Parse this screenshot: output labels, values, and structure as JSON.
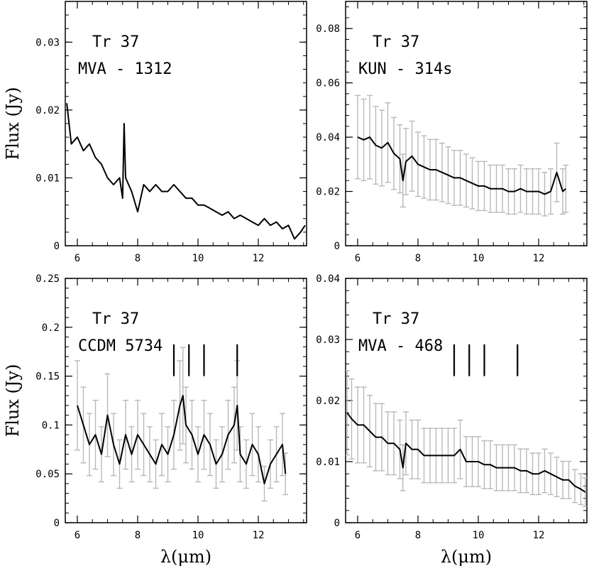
{
  "chart_data": [
    {
      "type": "line",
      "title": "",
      "labels": [
        "Tr 37",
        "MVA - 1312"
      ],
      "xlabel": "",
      "ylabel": "Flux (Jy)",
      "xlim": [
        5.6,
        13.6
      ],
      "ylim": [
        0,
        0.036
      ],
      "xticks": [
        "6",
        "8",
        "10",
        "12"
      ],
      "yticks": [
        "0",
        "0.01",
        "0.02",
        "0.03"
      ],
      "yvals": [
        0,
        0.01,
        0.02,
        0.03
      ],
      "error_bars": false,
      "features": [],
      "series": [
        {
          "name": "MVA - 1312",
          "x": [
            5.65,
            5.8,
            6.0,
            6.2,
            6.4,
            6.6,
            6.8,
            7.0,
            7.2,
            7.4,
            7.5,
            7.55,
            7.6,
            7.8,
            8.0,
            8.2,
            8.4,
            8.6,
            8.8,
            9.0,
            9.2,
            9.4,
            9.6,
            9.8,
            10.0,
            10.2,
            10.4,
            10.6,
            10.8,
            11.0,
            11.2,
            11.4,
            11.6,
            11.8,
            12.0,
            12.2,
            12.4,
            12.6,
            12.8,
            13.0,
            13.2,
            13.4,
            13.55
          ],
          "y": [
            0.021,
            0.015,
            0.016,
            0.014,
            0.015,
            0.013,
            0.012,
            0.01,
            0.009,
            0.01,
            0.007,
            0.018,
            0.01,
            0.008,
            0.005,
            0.009,
            0.008,
            0.009,
            0.008,
            0.008,
            0.009,
            0.008,
            0.007,
            0.007,
            0.006,
            0.006,
            0.0055,
            0.005,
            0.0045,
            0.005,
            0.004,
            0.0045,
            0.004,
            0.0035,
            0.003,
            0.004,
            0.003,
            0.0035,
            0.0025,
            0.003,
            0.001,
            0.002,
            0.003
          ]
        }
      ]
    },
    {
      "type": "line",
      "title": "",
      "labels": [
        "Tr 37",
        "KUN - 314s"
      ],
      "xlabel": "",
      "ylabel": "",
      "xlim": [
        5.6,
        13.6
      ],
      "ylim": [
        0,
        0.09
      ],
      "xticks": [
        "6",
        "8",
        "10",
        "12"
      ],
      "yticks": [
        "0",
        "0.02",
        "0.04",
        "0.06",
        "0.08"
      ],
      "yvals": [
        0,
        0.02,
        0.04,
        0.06,
        0.08
      ],
      "error_bars": true,
      "features": [],
      "series": [
        {
          "name": "KUN - 314s",
          "x": [
            6.0,
            6.2,
            6.4,
            6.6,
            6.8,
            7.0,
            7.2,
            7.4,
            7.5,
            7.6,
            7.8,
            8.0,
            8.2,
            8.4,
            8.6,
            8.8,
            9.0,
            9.2,
            9.4,
            9.6,
            9.8,
            10.0,
            10.2,
            10.4,
            10.6,
            10.8,
            11.0,
            11.2,
            11.4,
            11.6,
            11.8,
            12.0,
            12.2,
            12.4,
            12.6,
            12.8,
            12.9
          ],
          "y": [
            0.04,
            0.039,
            0.04,
            0.037,
            0.036,
            0.038,
            0.034,
            0.032,
            0.024,
            0.031,
            0.033,
            0.03,
            0.029,
            0.028,
            0.028,
            0.027,
            0.026,
            0.025,
            0.025,
            0.024,
            0.023,
            0.022,
            0.022,
            0.021,
            0.021,
            0.021,
            0.02,
            0.02,
            0.021,
            0.02,
            0.02,
            0.02,
            0.019,
            0.02,
            0.027,
            0.02,
            0.021
          ]
        }
      ]
    },
    {
      "type": "line",
      "title": "",
      "labels": [
        "Tr 37",
        "CCDM 5734"
      ],
      "xlabel": "λ(μm)",
      "ylabel": "Flux (Jy)",
      "xlim": [
        5.6,
        13.6
      ],
      "ylim": [
        0,
        0.25
      ],
      "xticks": [
        "6",
        "8",
        "10",
        "12"
      ],
      "yticks": [
        "0",
        "0.05",
        "0.1",
        "0.15",
        "0.2",
        "0.25"
      ],
      "yvals": [
        0,
        0.05,
        0.1,
        0.15,
        0.2,
        0.25
      ],
      "error_bars": true,
      "features": [
        9.2,
        9.7,
        10.2,
        11.3
      ],
      "series": [
        {
          "name": "CCDM 5734",
          "x": [
            6.0,
            6.2,
            6.4,
            6.6,
            6.8,
            7.0,
            7.2,
            7.4,
            7.6,
            7.8,
            8.0,
            8.2,
            8.4,
            8.6,
            8.8,
            9.0,
            9.2,
            9.4,
            9.5,
            9.6,
            9.8,
            10.0,
            10.2,
            10.4,
            10.6,
            10.8,
            11.0,
            11.2,
            11.3,
            11.4,
            11.6,
            11.8,
            12.0,
            12.2,
            12.4,
            12.6,
            12.8,
            12.9
          ],
          "y": [
            0.12,
            0.1,
            0.08,
            0.09,
            0.07,
            0.11,
            0.08,
            0.06,
            0.09,
            0.07,
            0.09,
            0.08,
            0.07,
            0.06,
            0.08,
            0.07,
            0.09,
            0.12,
            0.13,
            0.1,
            0.09,
            0.07,
            0.09,
            0.08,
            0.06,
            0.07,
            0.09,
            0.1,
            0.12,
            0.07,
            0.06,
            0.08,
            0.07,
            0.04,
            0.06,
            0.07,
            0.08,
            0.05
          ]
        }
      ]
    },
    {
      "type": "line",
      "title": "",
      "labels": [
        "Tr 37",
        "MVA - 468"
      ],
      "xlabel": "λ(μm)",
      "ylabel": "",
      "xlim": [
        5.6,
        13.6
      ],
      "ylim": [
        0,
        0.04
      ],
      "xticks": [
        "6",
        "8",
        "10",
        "12"
      ],
      "yticks": [
        "0",
        "0.01",
        "0.02",
        "0.03",
        "0.04"
      ],
      "yvals": [
        0,
        0.01,
        0.02,
        0.03,
        0.04
      ],
      "error_bars": true,
      "features": [
        9.2,
        9.7,
        10.2,
        11.3
      ],
      "series": [
        {
          "name": "MVA - 468",
          "x": [
            5.65,
            5.8,
            6.0,
            6.2,
            6.4,
            6.6,
            6.8,
            7.0,
            7.2,
            7.4,
            7.5,
            7.6,
            7.8,
            8.0,
            8.2,
            8.4,
            8.6,
            8.8,
            9.0,
            9.2,
            9.4,
            9.6,
            9.8,
            10.0,
            10.2,
            10.4,
            10.6,
            10.8,
            11.0,
            11.2,
            11.4,
            11.6,
            11.8,
            12.0,
            12.2,
            12.4,
            12.6,
            12.8,
            13.0,
            13.2,
            13.4,
            13.55
          ],
          "y": [
            0.018,
            0.017,
            0.016,
            0.016,
            0.015,
            0.014,
            0.014,
            0.013,
            0.013,
            0.012,
            0.009,
            0.013,
            0.012,
            0.012,
            0.011,
            0.011,
            0.011,
            0.011,
            0.011,
            0.011,
            0.012,
            0.01,
            0.01,
            0.01,
            0.0095,
            0.0095,
            0.009,
            0.009,
            0.009,
            0.009,
            0.0085,
            0.0085,
            0.008,
            0.008,
            0.0085,
            0.008,
            0.0075,
            0.007,
            0.007,
            0.006,
            0.0055,
            0.005
          ]
        }
      ]
    }
  ]
}
